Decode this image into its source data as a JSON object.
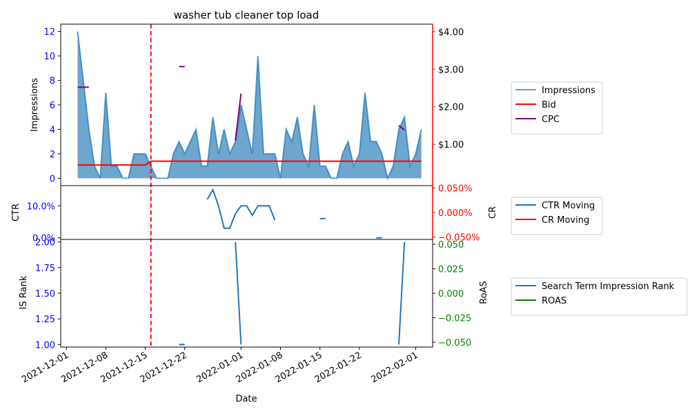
{
  "chart_data": {
    "type": "line",
    "title": "washer tub cleaner top load",
    "xlabel": "Date",
    "x_ticks": [
      "2021-12-01",
      "2021-12-08",
      "2021-12-15",
      "2021-12-22",
      "2022-01-01",
      "2022-01-08",
      "2022-01-15",
      "2022-01-22",
      "2022-02-01"
    ],
    "vline_date": "2021-12-16",
    "colors": {
      "impressions": "#1f77b4",
      "bid": "#ff0000",
      "cpc": "#800080",
      "ctr": "#1f77b4",
      "cr": "#ff0000",
      "rank": "#1f77b4",
      "roas": "#008000",
      "left_tick": "#0000ff",
      "right_tick_top": "#ff0000",
      "right_tick_bottom": "#008000"
    },
    "panels": {
      "top": {
        "ylabel": "Impressions",
        "ylim": [
          -0.6,
          12.6
        ],
        "y_ticks": [
          "0",
          "2",
          "4",
          "6",
          "8",
          "10",
          "12"
        ],
        "y2lim": [
          -0.1,
          4.2
        ],
        "y2_ticks": [
          "$1.00",
          "$2.00",
          "$3.00",
          "$4.00"
        ],
        "impressions": [
          [
            "2021-12-03",
            12
          ],
          [
            "2021-12-04",
            8
          ],
          [
            "2021-12-05",
            4
          ],
          [
            "2021-12-06",
            1
          ],
          [
            "2021-12-07",
            0
          ],
          [
            "2021-12-08",
            7
          ],
          [
            "2021-12-09",
            1
          ],
          [
            "2021-12-10",
            1
          ],
          [
            "2021-12-11",
            0
          ],
          [
            "2021-12-12",
            0
          ],
          [
            "2021-12-13",
            2
          ],
          [
            "2021-12-14",
            2
          ],
          [
            "2021-12-15",
            2
          ],
          [
            "2021-12-16",
            1
          ],
          [
            "2021-12-17",
            0
          ],
          [
            "2021-12-18",
            0
          ],
          [
            "2021-12-19",
            0
          ],
          [
            "2021-12-20",
            2
          ],
          [
            "2021-12-21",
            3
          ],
          [
            "2021-12-22",
            2
          ],
          [
            "2021-12-23",
            3
          ],
          [
            "2021-12-24",
            4
          ],
          [
            "2021-12-25",
            1
          ],
          [
            "2021-12-26",
            1
          ],
          [
            "2021-12-27",
            5
          ],
          [
            "2021-12-28",
            2
          ],
          [
            "2021-12-29",
            4
          ],
          [
            "2021-12-30",
            2
          ],
          [
            "2021-12-31",
            3
          ],
          [
            "2022-01-01",
            6
          ],
          [
            "2022-01-02",
            4
          ],
          [
            "2022-01-03",
            2
          ],
          [
            "2022-01-04",
            10
          ],
          [
            "2022-01-05",
            2
          ],
          [
            "2022-01-06",
            2
          ],
          [
            "2022-01-07",
            2
          ],
          [
            "2022-01-08",
            0
          ],
          [
            "2022-01-09",
            4
          ],
          [
            "2022-01-10",
            3
          ],
          [
            "2022-01-11",
            5
          ],
          [
            "2022-01-12",
            2
          ],
          [
            "2022-01-13",
            1
          ],
          [
            "2022-01-14",
            6
          ],
          [
            "2022-01-15",
            1
          ],
          [
            "2022-01-16",
            1
          ],
          [
            "2022-01-17",
            0
          ],
          [
            "2022-01-18",
            0
          ],
          [
            "2022-01-19",
            2
          ],
          [
            "2022-01-20",
            3
          ],
          [
            "2022-01-21",
            1
          ],
          [
            "2022-01-22",
            2
          ],
          [
            "2022-01-23",
            7
          ],
          [
            "2022-01-24",
            3
          ],
          [
            "2022-01-25",
            3
          ],
          [
            "2022-01-26",
            2
          ],
          [
            "2022-01-27",
            0
          ],
          [
            "2022-01-28",
            1
          ],
          [
            "2022-01-29",
            4
          ],
          [
            "2022-01-30",
            5
          ],
          [
            "2022-01-31",
            1
          ],
          [
            "2022-02-01",
            2
          ],
          [
            "2022-02-02",
            4
          ]
        ],
        "bid": [
          [
            "2021-12-03",
            0.45
          ],
          [
            "2021-12-15",
            0.45
          ],
          [
            "2021-12-16",
            0.55
          ],
          [
            "2022-02-02",
            0.55
          ]
        ],
        "cpc_segments": [
          [
            [
              "2021-12-03",
              2.52
            ],
            [
              "2021-12-05",
              2.52
            ]
          ],
          [
            [
              "2021-12-21",
              3.07
            ],
            [
              "2021-12-22",
              3.07
            ]
          ],
          [
            [
              "2021-12-31",
              1.1
            ],
            [
              "2022-01-01",
              2.35
            ]
          ],
          [
            [
              "2022-01-29",
              1.5
            ],
            [
              "2022-01-30",
              1.38
            ]
          ]
        ]
      },
      "middle": {
        "ylabel": "CTR",
        "ylim": [
          -0.5,
          16.3
        ],
        "y_ticks": [
          "0.0%",
          "10.0%"
        ],
        "y2label": "CR",
        "y2lim": [
          -0.055,
          0.055
        ],
        "y2_ticks": [
          "−0.050%",
          "0.000%",
          "0.050%"
        ],
        "ctr_segments": [
          [
            [
              "2021-12-26",
              12.0
            ],
            [
              "2021-12-27",
              15.0
            ],
            [
              "2021-12-28",
              10.0
            ],
            [
              "2021-12-29",
              3.0
            ],
            [
              "2021-12-30",
              3.0
            ],
            [
              "2021-12-31",
              7.5
            ],
            [
              "2022-01-01",
              10.0
            ],
            [
              "2022-01-02",
              10.0
            ],
            [
              "2022-01-03",
              7.0
            ],
            [
              "2022-01-04",
              10.0
            ],
            [
              "2022-01-05",
              10.0
            ],
            [
              "2022-01-06",
              10.0
            ],
            [
              "2022-01-07",
              5.5
            ]
          ],
          [
            [
              "2022-01-15",
              6.0
            ],
            [
              "2022-01-16",
              6.0
            ]
          ],
          [
            [
              "2022-01-25",
              0.0
            ],
            [
              "2022-01-26",
              0.0
            ]
          ]
        ]
      },
      "bottom": {
        "ylabel": "IS Rank",
        "ylim": [
          0.975,
          2.025
        ],
        "y_ticks": [
          "1.00",
          "1.25",
          "1.50",
          "1.75",
          "2.00"
        ],
        "y2label": "RoAS",
        "y2lim": [
          -0.055,
          0.055
        ],
        "y2_ticks": [
          "−0.050",
          "−0.025",
          "0.000",
          "0.025",
          "0.050"
        ],
        "rank_segments": [
          [
            [
              "2021-12-21",
              1.0
            ],
            [
              "2021-12-22",
              1.0
            ]
          ],
          [
            [
              "2021-12-31",
              2.0
            ],
            [
              "2022-01-01",
              1.0
            ]
          ],
          [
            [
              "2022-01-29",
              1.0
            ],
            [
              "2022-01-30",
              2.0
            ]
          ]
        ]
      }
    },
    "legends": {
      "top": [
        "Impressions",
        "Bid",
        "CPC"
      ],
      "middle": [
        "CTR Moving",
        "CR Moving"
      ],
      "bottom": [
        "Search Term Impression Rank",
        "ROAS"
      ]
    }
  }
}
